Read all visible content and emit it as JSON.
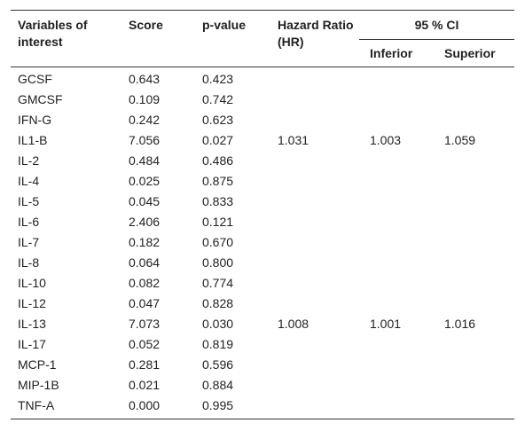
{
  "header": {
    "variables": "Variables of interest",
    "score": "Score",
    "p_value": "p-value",
    "hr": "Hazard Ratio (HR)",
    "ci": "95 % CI",
    "inferior": "Inferior",
    "superior": "Superior"
  },
  "table": {
    "rows": [
      {
        "variable": "GCSF",
        "score": "0.643",
        "p_value": "0.423"
      },
      {
        "variable": "GMCSF",
        "score": "0.109",
        "p_value": "0.742"
      },
      {
        "variable": "IFN-G",
        "score": "0.242",
        "p_value": "0.623"
      },
      {
        "variable": "IL1-B",
        "score": "7.056",
        "p_value": "0.027",
        "hr": "1.031",
        "inferior": "1.003",
        "superior": "1.059"
      },
      {
        "variable": "IL-2",
        "score": "0.484",
        "p_value": "0.486"
      },
      {
        "variable": "IL-4",
        "score": "0.025",
        "p_value": "0.875"
      },
      {
        "variable": "IL-5",
        "score": "0.045",
        "p_value": "0.833"
      },
      {
        "variable": "IL-6",
        "score": "2.406",
        "p_value": "0.121"
      },
      {
        "variable": "IL-7",
        "score": "0.182",
        "p_value": "0.670"
      },
      {
        "variable": "IL-8",
        "score": "0.064",
        "p_value": "0.800"
      },
      {
        "variable": "IL-10",
        "score": "0.082",
        "p_value": "0.774"
      },
      {
        "variable": "IL-12",
        "score": "0.047",
        "p_value": "0.828"
      },
      {
        "variable": "IL-13",
        "score": "7.073",
        "p_value": "0.030",
        "hr": "1.008",
        "inferior": "1.001",
        "superior": "1.016"
      },
      {
        "variable": "IL-17",
        "score": "0.052",
        "p_value": "0.819"
      },
      {
        "variable": "MCP-1",
        "score": "0.281",
        "p_value": "0.596"
      },
      {
        "variable": "MIP-1B",
        "score": "0.021",
        "p_value": "0.884"
      },
      {
        "variable": "TNF-A",
        "score": "0.000",
        "p_value": "0.995"
      }
    ]
  }
}
